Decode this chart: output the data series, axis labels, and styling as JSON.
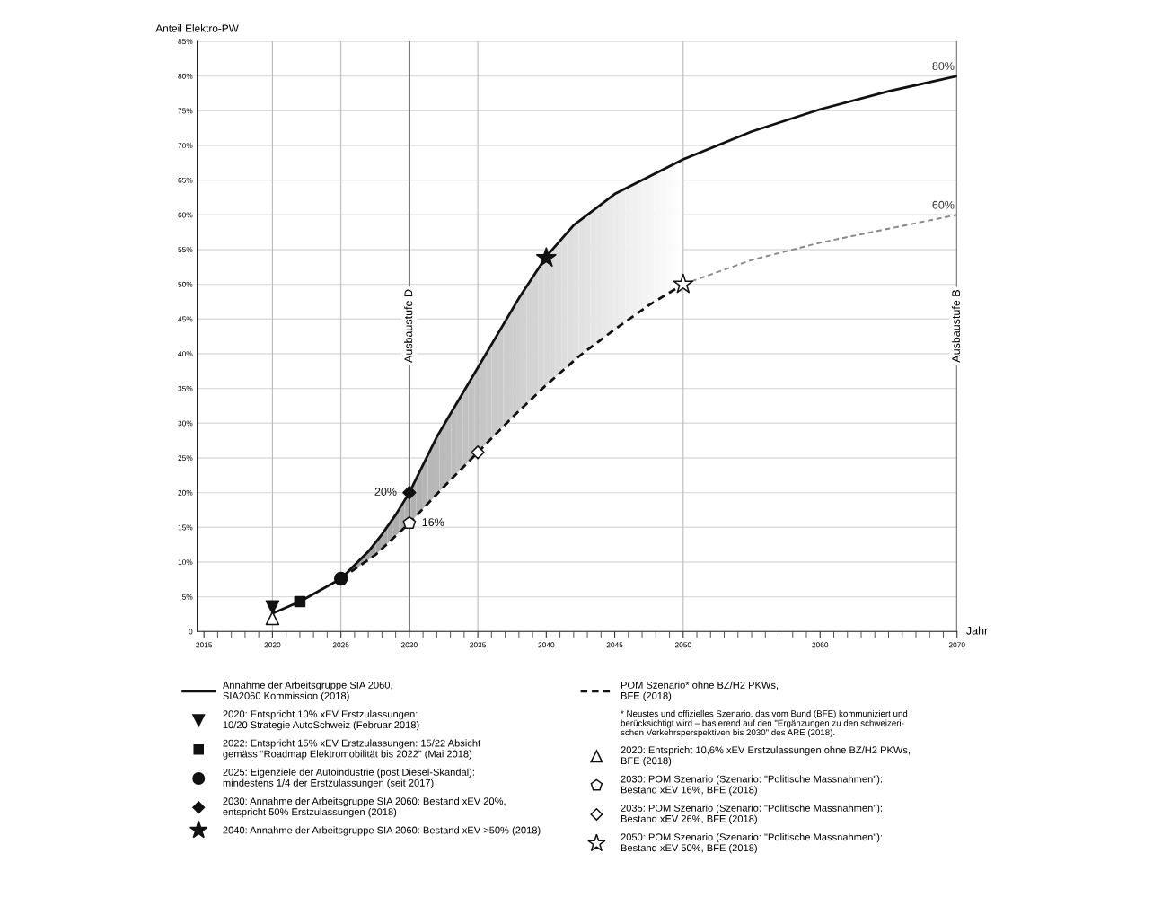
{
  "chart_data": {
    "type": "line",
    "xlabel": "Jahr",
    "ylabel": "Anteil Elektro-PW",
    "xlim": [
      2014.5,
      2070
    ],
    "ylim": [
      0,
      85
    ],
    "xticks": [
      2015,
      2020,
      2025,
      2030,
      2035,
      2040,
      2045,
      2050,
      2060,
      2070
    ],
    "yticks": [
      {
        "value": 0,
        "label": "0"
      },
      {
        "value": 5,
        "label": "5%"
      },
      {
        "value": 10,
        "label": "10%"
      },
      {
        "value": 15,
        "label": "15%"
      },
      {
        "value": 20,
        "label": "20%"
      },
      {
        "value": 25,
        "label": "25%"
      },
      {
        "value": 30,
        "label": "30%"
      },
      {
        "value": 35,
        "label": "35%"
      },
      {
        "value": 40,
        "label": "40%"
      },
      {
        "value": 45,
        "label": "45%"
      },
      {
        "value": 50,
        "label": "50%"
      },
      {
        "value": 55,
        "label": "55%"
      },
      {
        "value": 60,
        "label": "60%"
      },
      {
        "value": 65,
        "label": "65%"
      },
      {
        "value": 70,
        "label": "70%"
      },
      {
        "value": 75,
        "label": "75%"
      },
      {
        "value": 80,
        "label": "80%"
      },
      {
        "value": 85,
        "label": "85%"
      }
    ],
    "grid": "y",
    "legend": "bottom",
    "series": [
      {
        "name": "Annahme der Arbeitsgruppe SIA 2060,\nSIA2060 Kommission (2018)",
        "color": "#111111",
        "line_style": "solid",
        "x": [
          2020,
          2022,
          2025,
          2027,
          2028,
          2029,
          2030,
          2032,
          2035,
          2038,
          2040,
          2042,
          2045,
          2050,
          2055,
          2060,
          2065,
          2070
        ],
        "values": [
          2.6,
          4.3,
          7.6,
          11.5,
          14,
          16.8,
          20,
          28,
          38,
          48,
          54,
          58.5,
          63,
          68,
          72,
          75.2,
          77.8,
          80
        ],
        "value_labels": [
          null,
          null,
          null,
          null,
          null,
          null,
          "20%",
          null,
          null,
          null,
          null,
          null,
          null,
          null,
          null,
          null,
          null,
          "80%"
        ]
      },
      {
        "type": "scatter",
        "name": "2020: Entspricht 10% xEV Erstzulassungen:\n10/20 Strategie AutoSchweiz (Februar 2018)",
        "color": "#111111",
        "marker": "triangle-down",
        "x": [
          2020
        ],
        "values": [
          3.5
        ]
      },
      {
        "type": "scatter",
        "name": "2022: Entspricht 15% xEV Erstzulassungen: 15/22 Absicht\ngemäss “Roadmap Elektromobilität bis 2022” (Mai 2018)",
        "color": "#111111",
        "marker": "square",
        "x": [
          2022
        ],
        "values": [
          4.3
        ]
      },
      {
        "type": "scatter",
        "name": "2025: Eigenziele der Autoindustrie (post Diesel-Skandal):\nmindestens 1/4 der Erstzulassungen (seit 2017)",
        "color": "#111111",
        "marker": "circle",
        "x": [
          2025
        ],
        "values": [
          7.6
        ]
      },
      {
        "type": "scatter",
        "name": "2030: Annahme der Arbeitsgruppe SIA 2060: Bestand xEV 20%,\nentspricht 50% Erstzulassungen (2018)",
        "color": "#111111",
        "marker": "diamond",
        "x": [
          2030
        ],
        "values": [
          20
        ]
      },
      {
        "type": "scatter",
        "name": "2040: Annahme der Arbeitsgruppe SIA 2060: Bestand xEV >50% (2018)",
        "color": "#111111",
        "marker": "star",
        "x": [
          2040
        ],
        "values": [
          53.8
        ]
      },
      {
        "name": "POM Szenario* ohne BZ/H2 PKWs,\nBFE (2018)",
        "color": "#111111",
        "line_style": "dashed",
        "x": [
          2025,
          2027.5,
          2030,
          2032.5,
          2035,
          2037.5,
          2040,
          2042.5,
          2045,
          2047.5,
          2050
        ],
        "values": [
          7.6,
          11,
          15.6,
          20.8,
          25.8,
          30.8,
          35.5,
          39.8,
          43.5,
          47,
          50
        ],
        "value_labels": [
          null,
          null,
          "16%",
          null,
          null,
          null,
          null,
          null,
          null,
          null,
          null
        ]
      },
      {
        "color": "#888888",
        "line_style": "dashed",
        "x": [
          2050,
          2055,
          2060,
          2065,
          2070
        ],
        "values": [
          50,
          53.5,
          56,
          58,
          60
        ],
        "value_labels": [
          null,
          null,
          null,
          null,
          "60%"
        ]
      },
      {
        "type": "scatter",
        "name": "2020: Entspricht 10,6% xEV Erstzulassungen ohne BZ/H2 PKWs,\nBFE (2018)",
        "color": "#ffffff",
        "marker": "triangle",
        "x": [
          2020
        ],
        "values": [
          1.9
        ]
      },
      {
        "type": "scatter",
        "name": "2030: POM Szenario (Szenario: \"Politische Massnahmen\"):\nBestand xEV 16%, BFE (2018)",
        "color": "#ffffff",
        "x": [
          2030
        ],
        "values": [
          15.6
        ]
      },
      {
        "type": "scatter",
        "name": "2035: POM Szenario (Szenario: \"Politische Massnahmen\"):\nBestand xEV 26%, BFE (2018)",
        "color": "#ffffff",
        "marker": "diamond",
        "x": [
          2035
        ],
        "values": [
          25.8
        ]
      },
      {
        "type": "scatter",
        "name": "2050: POM Szenario (Szenario: \"Politische Massnahmen\"):\nBestand xEV 50%, BFE (2018)",
        "color": "#ffffff",
        "marker": "star",
        "x": [
          2050
        ],
        "values": [
          50
        ]
      }
    ],
    "ref_lines": [
      {
        "axis": "x",
        "value": 2020,
        "color": "#bbbbbb"
      },
      {
        "axis": "x",
        "value": 2025,
        "color": "#bbbbbb"
      },
      {
        "axis": "x",
        "value": 2035,
        "color": "#bbbbbb"
      },
      {
        "axis": "x",
        "value": 2050,
        "color": "#bbbbbb"
      },
      {
        "axis": "x",
        "value": 2030,
        "label": "Ausbaustufe D",
        "color": "#555555"
      },
      {
        "axis": "x",
        "value": 2070,
        "label": "Ausbaustufe B",
        "color": "#555555"
      }
    ],
    "annotations": [
      "* Neustes und offizielles Szenario, das vom Bund (BFE) kommuniziert und\nberücksichtigt wird – basierend auf den \"Ergänzungen zu den schweizeri-\nschen Verkehrsperspektiven bis 2030\" des ARE (2018)."
    ]
  }
}
